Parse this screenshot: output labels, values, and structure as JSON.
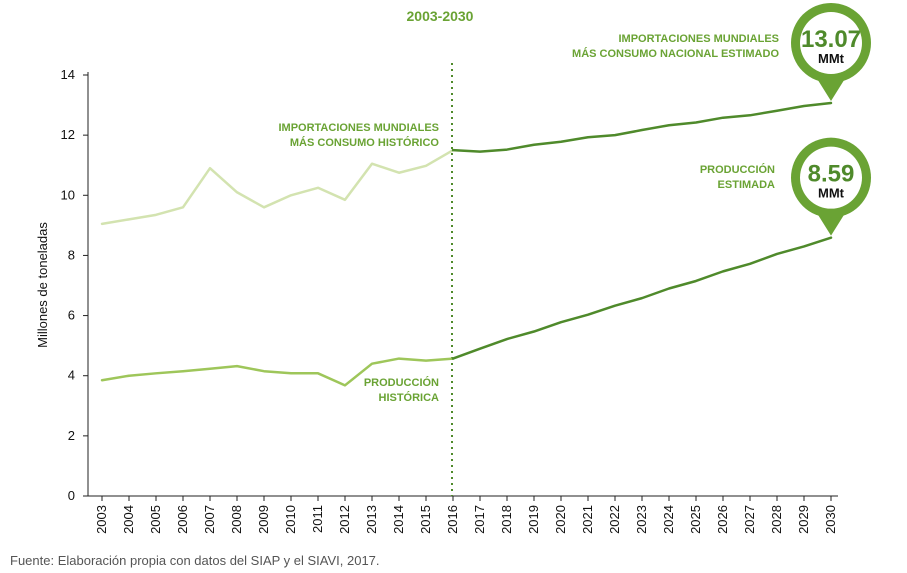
{
  "chart_data": {
    "type": "line",
    "title": "2003-2030",
    "ylabel": "Millones de toneladas",
    "ylim": [
      0,
      14
    ],
    "yticks": [
      0,
      2,
      4,
      6,
      8,
      10,
      12,
      14
    ],
    "x": [
      "2003",
      "2004",
      "2005",
      "2006",
      "2007",
      "2008",
      "2009",
      "2010",
      "2011",
      "2012",
      "2013",
      "2014",
      "2015",
      "2016",
      "2017",
      "2018",
      "2019",
      "2020",
      "2021",
      "2022",
      "2023",
      "2024",
      "2025",
      "2026",
      "2027",
      "2028",
      "2029",
      "2030"
    ],
    "divider_year": "2016",
    "series": [
      {
        "key": "imp_hist",
        "color": "#d3e3b0",
        "values": [
          9.05,
          9.2,
          9.35,
          9.6,
          10.9,
          10.1,
          9.6,
          10.0,
          10.25,
          9.85,
          11.05,
          10.75,
          10.98,
          11.5,
          null,
          null,
          null,
          null,
          null,
          null,
          null,
          null,
          null,
          null,
          null,
          null,
          null,
          null
        ]
      },
      {
        "key": "imp_est",
        "color": "#4f8a2b",
        "values": [
          null,
          null,
          null,
          null,
          null,
          null,
          null,
          null,
          null,
          null,
          null,
          null,
          null,
          11.5,
          11.45,
          11.52,
          11.68,
          11.78,
          11.93,
          12.0,
          12.17,
          12.33,
          12.42,
          12.58,
          12.66,
          12.81,
          12.97,
          13.07
        ]
      },
      {
        "key": "prod_hist",
        "color": "#9ec65a",
        "values": [
          3.85,
          4.0,
          4.08,
          4.15,
          4.23,
          4.32,
          4.15,
          4.08,
          4.08,
          3.68,
          4.4,
          4.57,
          4.5,
          4.57,
          null,
          null,
          null,
          null,
          null,
          null,
          null,
          null,
          null,
          null,
          null,
          null,
          null,
          null
        ]
      },
      {
        "key": "prod_est",
        "color": "#4f8a2b",
        "values": [
          null,
          null,
          null,
          null,
          null,
          null,
          null,
          null,
          null,
          null,
          null,
          null,
          null,
          4.57,
          4.9,
          5.22,
          5.47,
          5.78,
          6.03,
          6.33,
          6.58,
          6.9,
          7.15,
          7.47,
          7.72,
          8.05,
          8.3,
          8.59
        ]
      }
    ],
    "annotations": {
      "imp_hist": [
        "IMPORTACIONES MUNDIALES",
        "MÁS CONSUMO HISTÓRICO"
      ],
      "imp_est": [
        "IMPORTACIONES MUNDIALES",
        "MÁS CONSUMO NACIONAL ESTIMADO"
      ],
      "prod_hist": [
        "PRODUCCIÓN",
        "HISTÓRICA"
      ],
      "prod_est": [
        "PRODUCCIÓN",
        "ESTIMADA"
      ]
    },
    "bubbles": [
      {
        "series": "imp_est",
        "value": "13.07",
        "unit": "MMt"
      },
      {
        "series": "prod_est",
        "value": "8.59",
        "unit": "MMt"
      }
    ],
    "colors": {
      "bubble_ring": "#6aa334",
      "divider": "#4f8a2b"
    }
  },
  "source": "Fuente: Elaboración propia con datos del SIAP y el SIAVI, 2017."
}
